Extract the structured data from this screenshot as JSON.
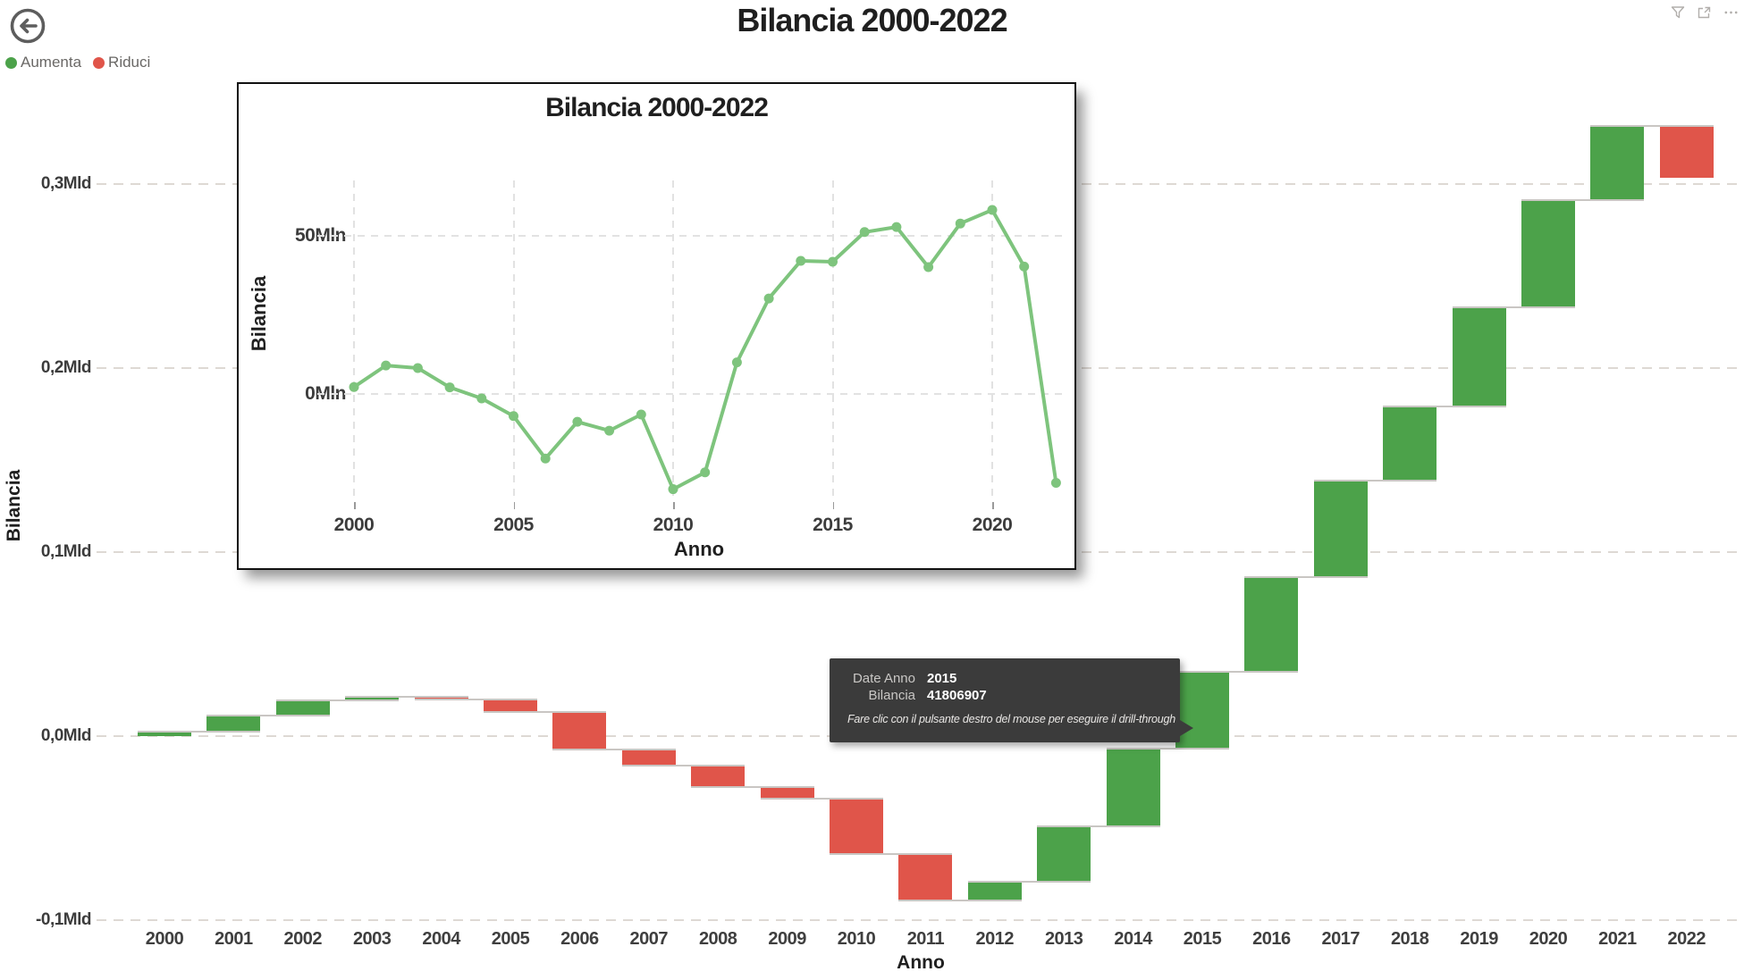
{
  "app": {
    "title": "Bilancia 2000-2022",
    "back_button": "back",
    "header_icons": [
      "filter",
      "focus-mode",
      "more-options"
    ]
  },
  "legend": {
    "items": [
      {
        "label": "Aumenta",
        "color": "#4ca24a"
      },
      {
        "label": "Riduci",
        "color": "#e0554a"
      }
    ]
  },
  "tooltip": {
    "rows": [
      {
        "label": "Date Anno",
        "value": "2015"
      },
      {
        "label": "Bilancia",
        "value": "41806907"
      }
    ],
    "hint": "Fare clic con il pulsante destro del mouse per eseguire il drill-through",
    "background": "#3b3b3b"
  },
  "chart_data": [
    {
      "type": "bar",
      "subtype": "waterfall",
      "title": "Bilancia 2000-2022",
      "xlabel": "Anno",
      "ylabel": "Bilancia",
      "unit": "Mln",
      "categories": [
        "2000",
        "2001",
        "2002",
        "2003",
        "2004",
        "2005",
        "2006",
        "2007",
        "2008",
        "2009",
        "2010",
        "2011",
        "2012",
        "2013",
        "2014",
        "2015",
        "2016",
        "2017",
        "2018",
        "2019",
        "2020",
        "2021",
        "2022"
      ],
      "values_mln": [
        2.2,
        9.0,
        8.2,
        2.1,
        -1.4,
        -7.0,
        -20.4,
        -8.8,
        -11.6,
        -6.5,
        -30.1,
        -24.8,
        10.0,
        30.2,
        42.1,
        41.8,
        51.2,
        52.8,
        40.1,
        53.9,
        58.2,
        40.3,
        -28.1
      ],
      "cumulative_end_mln": [
        2.2,
        11.2,
        19.4,
        21.5,
        20.1,
        13.1,
        -7.3,
        -16.1,
        -27.7,
        -34.2,
        -64.3,
        -89.1,
        -79.1,
        -48.9,
        -6.8,
        35.0,
        86.2,
        139.0,
        179.1,
        233.0,
        291.2,
        331.5,
        303.4
      ],
      "ytick_labels": [
        "-0,1Mld",
        "0,0Mld",
        "0,1Mld",
        "0,2Mld",
        "0,3Mld"
      ],
      "ytick_values_mln": [
        -100,
        0,
        100,
        200,
        300
      ],
      "ylim_mln": [
        -110,
        340
      ],
      "grid": "horizontal-dashed",
      "legend": [
        "Aumenta",
        "Riduci"
      ],
      "increase_color": "#4ca24a",
      "decrease_color": "#e0554a",
      "highlight": {
        "category": "2015",
        "value_exact": "41806907"
      }
    },
    {
      "type": "line",
      "title": "Bilancia 2000-2022",
      "xlabel": "Anno",
      "ylabel": "Bilancia",
      "unit": "Mln",
      "categories": [
        "2000",
        "2001",
        "2002",
        "2003",
        "2004",
        "2005",
        "2006",
        "2007",
        "2008",
        "2009",
        "2010",
        "2011",
        "2012",
        "2013",
        "2014",
        "2015",
        "2016",
        "2017",
        "2018",
        "2019",
        "2020",
        "2021",
        "2022"
      ],
      "values_mln": [
        2.2,
        9.0,
        8.2,
        2.1,
        -1.4,
        -7.0,
        -20.4,
        -8.8,
        -11.6,
        -6.5,
        -30.1,
        -24.8,
        10.0,
        30.2,
        42.1,
        41.8,
        51.2,
        52.8,
        40.1,
        53.9,
        58.2,
        40.3,
        -28.1
      ],
      "ytick_labels": [
        "0Mln",
        "50Mln"
      ],
      "ytick_values_mln": [
        0,
        50
      ],
      "xtick_labels": [
        "2000",
        "2005",
        "2010",
        "2015",
        "2020"
      ],
      "xtick_indices": [
        0,
        5,
        10,
        15,
        20
      ],
      "grid": "both-dashed",
      "line_color": "#7ec47d",
      "marker": "circle"
    }
  ]
}
